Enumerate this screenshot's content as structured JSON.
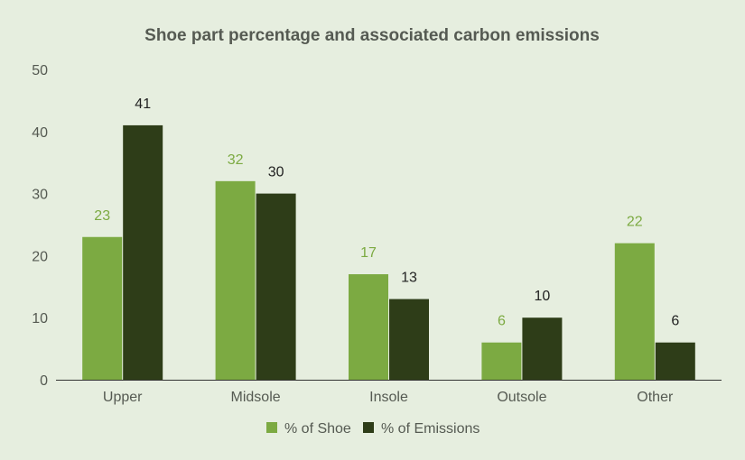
{
  "chart_data": {
    "type": "bar",
    "title": "Shoe part percentage and associated carbon emissions",
    "categories": [
      "Upper",
      "Midsole",
      "Insole",
      "Outsole",
      "Other"
    ],
    "series": [
      {
        "name": "% of Shoe",
        "values": [
          23,
          32,
          17,
          6,
          22
        ],
        "color": "#7caa42"
      },
      {
        "name": "% of Emissions",
        "values": [
          41,
          30,
          13,
          10,
          6
        ],
        "color": "#2e3d18"
      }
    ],
    "y_ticks": [
      0,
      10,
      20,
      30,
      40,
      50
    ],
    "ylim": [
      0,
      50
    ],
    "xlabel": "",
    "ylabel": "",
    "grid": false,
    "legend_position": "bottom",
    "data_labels": true,
    "colors": {
      "background": "#e6eedf",
      "text": "#555a52",
      "axis": "#333333"
    }
  }
}
